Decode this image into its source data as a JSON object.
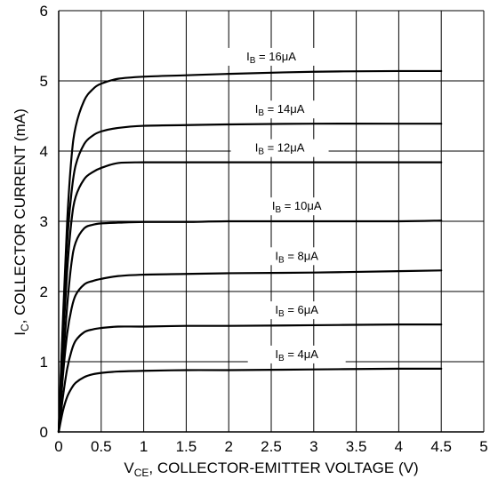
{
  "chart_data": {
    "type": "line",
    "xlabel": {
      "main": "V",
      "sub": "CE",
      "rest": ", COLLECTOR-EMITTER VOLTAGE (V)"
    },
    "ylabel": {
      "main": "I",
      "sub": "C",
      "rest": ", COLLECTOR CURRENT (mA)"
    },
    "xlim": [
      0,
      5
    ],
    "ylim": [
      0,
      6
    ],
    "x_ticks": [
      "0",
      "0.5",
      "1",
      "1.5",
      "2",
      "2.5",
      "3",
      "3.5",
      "4",
      "4.5",
      "5"
    ],
    "y_ticks": [
      "0",
      "1",
      "2",
      "3",
      "4",
      "5",
      "6"
    ],
    "grid": true,
    "series": [
      {
        "name": "IB = 4μA",
        "label": {
          "main": "I",
          "sub": "B",
          "rest": " = 4μA"
        },
        "x": [
          0,
          0.05,
          0.1,
          0.15,
          0.2,
          0.3,
          0.4,
          0.5,
          0.7,
          1.0,
          1.5,
          2.0,
          3.0,
          4.0,
          4.5
        ],
        "y": [
          0,
          0.3,
          0.5,
          0.62,
          0.7,
          0.78,
          0.82,
          0.84,
          0.86,
          0.87,
          0.88,
          0.88,
          0.89,
          0.9,
          0.9
        ]
      },
      {
        "name": "IB = 6μA",
        "label": {
          "main": "I",
          "sub": "B",
          "rest": " = 6μA"
        },
        "x": [
          0,
          0.05,
          0.1,
          0.15,
          0.2,
          0.3,
          0.4,
          0.5,
          0.7,
          1.0,
          1.5,
          2.0,
          3.0,
          4.0,
          4.5
        ],
        "y": [
          0,
          0.5,
          0.9,
          1.15,
          1.3,
          1.42,
          1.46,
          1.48,
          1.5,
          1.5,
          1.51,
          1.51,
          1.52,
          1.53,
          1.53
        ]
      },
      {
        "name": "IB = 8μA",
        "label": {
          "main": "I",
          "sub": "B",
          "rest": " = 8μA"
        },
        "x": [
          0,
          0.05,
          0.1,
          0.15,
          0.2,
          0.3,
          0.4,
          0.5,
          0.7,
          1.0,
          1.5,
          2.0,
          3.0,
          4.0,
          4.5
        ],
        "y": [
          0,
          0.8,
          1.4,
          1.75,
          1.95,
          2.1,
          2.15,
          2.18,
          2.22,
          2.24,
          2.25,
          2.26,
          2.27,
          2.29,
          2.3
        ]
      },
      {
        "name": "IB = 10μA",
        "label": {
          "main": "I",
          "sub": "B",
          "rest": " = 10μA"
        },
        "x": [
          0,
          0.05,
          0.1,
          0.15,
          0.2,
          0.3,
          0.4,
          0.5,
          0.7,
          1.0,
          1.5,
          2.0,
          3.0,
          4.0,
          4.5
        ],
        "y": [
          0,
          1.0,
          1.8,
          2.4,
          2.7,
          2.9,
          2.95,
          2.97,
          2.98,
          2.99,
          2.99,
          3.0,
          3.0,
          3.0,
          3.01
        ]
      },
      {
        "name": "IB = 12μA",
        "label": {
          "main": "I",
          "sub": "B",
          "rest": " = 12μA"
        },
        "x": [
          0,
          0.05,
          0.1,
          0.15,
          0.2,
          0.3,
          0.4,
          0.5,
          0.7,
          1.0,
          1.5,
          2.0,
          3.0,
          4.0,
          4.5
        ],
        "y": [
          0,
          1.3,
          2.3,
          3.0,
          3.35,
          3.6,
          3.7,
          3.76,
          3.83,
          3.84,
          3.84,
          3.84,
          3.84,
          3.84,
          3.84
        ]
      },
      {
        "name": "IB = 14μA",
        "label": {
          "main": "I",
          "sub": "B",
          "rest": " = 14μA"
        },
        "x": [
          0,
          0.05,
          0.1,
          0.15,
          0.2,
          0.3,
          0.4,
          0.5,
          0.7,
          1.0,
          1.5,
          2.0,
          3.0,
          4.0,
          4.5
        ],
        "y": [
          0,
          1.5,
          2.7,
          3.4,
          3.8,
          4.1,
          4.22,
          4.28,
          4.33,
          4.36,
          4.37,
          4.38,
          4.39,
          4.39,
          4.39
        ]
      },
      {
        "name": "IB = 16μA",
        "label": {
          "main": "I",
          "sub": "B",
          "rest": " = 16μA"
        },
        "x": [
          0,
          0.05,
          0.1,
          0.15,
          0.2,
          0.3,
          0.4,
          0.5,
          0.7,
          1.0,
          1.5,
          2.0,
          3.0,
          4.0,
          4.5
        ],
        "y": [
          0,
          1.6,
          3.0,
          3.9,
          4.35,
          4.72,
          4.88,
          4.96,
          5.03,
          5.06,
          5.08,
          5.1,
          5.13,
          5.14,
          5.14
        ]
      }
    ],
    "colors": {
      "line": "#000000",
      "background": "#ffffff"
    }
  }
}
